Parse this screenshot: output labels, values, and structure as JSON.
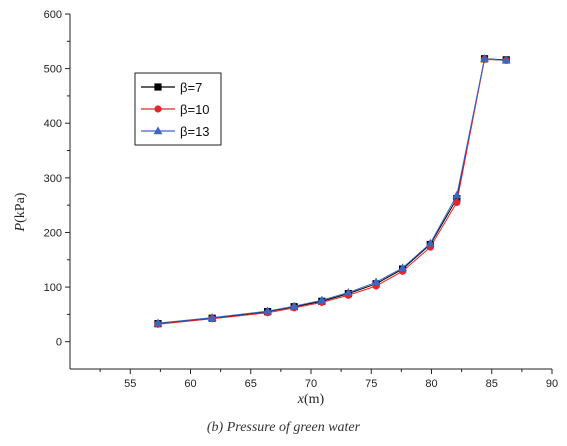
{
  "chart_data": {
    "type": "line",
    "x_var": "x",
    "x_unit": "(m)",
    "y_var": "P",
    "y_unit": "(kPa)",
    "xlim": [
      50,
      90
    ],
    "ylim": [
      -50,
      600
    ],
    "xticks": [
      55,
      60,
      65,
      70,
      75,
      80,
      85,
      90
    ],
    "yticks": [
      0,
      100,
      200,
      300,
      400,
      500,
      600
    ],
    "legend_position": "upper-left",
    "grid": false,
    "x": [
      57.3,
      61.8,
      66.4,
      68.6,
      70.9,
      73.1,
      75.4,
      77.6,
      79.9,
      82.1,
      84.4,
      86.2
    ],
    "series": [
      {
        "name": "β=7",
        "color": "#000000",
        "marker": "square",
        "values": [
          33,
          43,
          55,
          64,
          74,
          88,
          106,
          133,
          178,
          262,
          518,
          516
        ]
      },
      {
        "name": "β=10",
        "color": "#e3262b",
        "marker": "circle",
        "values": [
          32,
          42,
          53,
          62,
          72,
          85,
          102,
          129,
          173,
          255,
          517,
          515
        ]
      },
      {
        "name": "β=13",
        "color": "#3a66c4",
        "marker": "triangle",
        "values": [
          34,
          44,
          56,
          65,
          76,
          90,
          109,
          135,
          180,
          268,
          518,
          515
        ]
      }
    ]
  },
  "caption": "(b) Pressure of green water"
}
